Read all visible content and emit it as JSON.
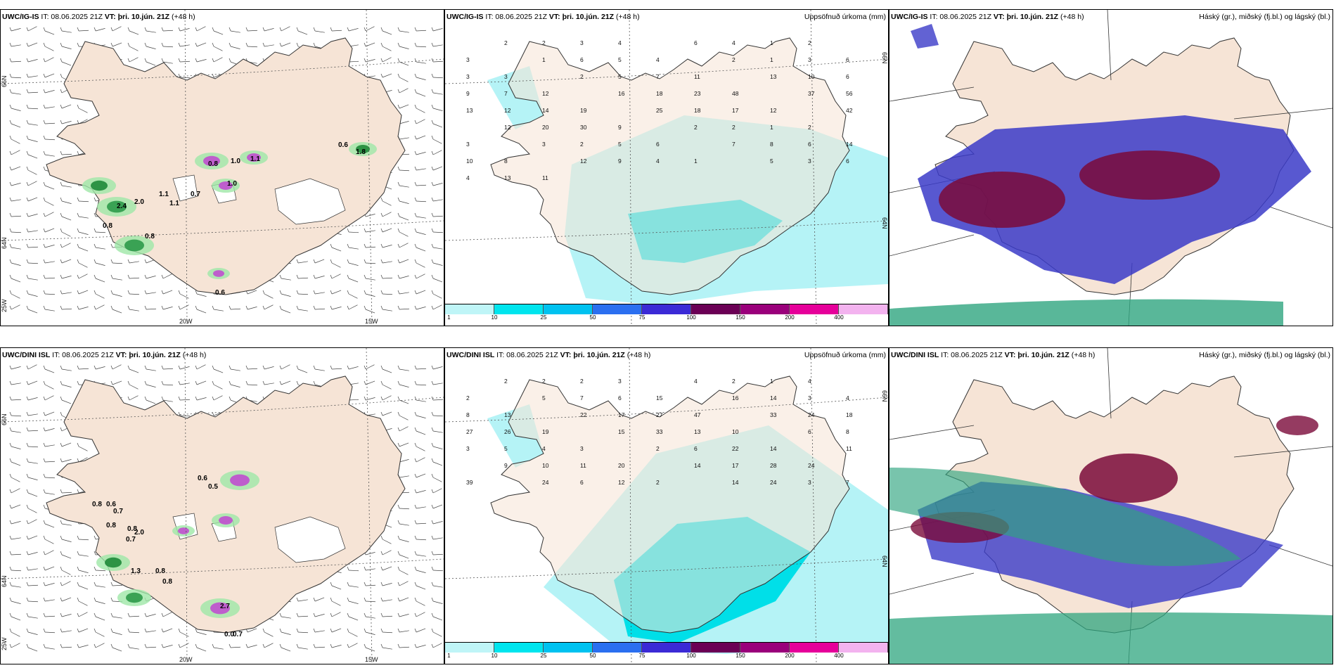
{
  "rows": [
    {
      "wind": {
        "header_bold": "UWC/IG-IS",
        "header_it": " IT: 08.06.2025 21Z ",
        "header_vt_bold": "VT: þri. 10.jún. 21Z",
        "header_tail": " (+48 h)",
        "numbers": [
          "0.6",
          "1.8",
          "0.8",
          "1.1",
          "1.0",
          "2.0",
          "1.1",
          "0.8",
          "0.6",
          "0.8",
          "2.4",
          "1.1",
          "1.0",
          "0.7"
        ]
      },
      "precip": {
        "header_bold": "UWC/IG-IS",
        "header_it": " IT: 08.06.2025 21Z ",
        "header_vt_bold": "VT: þri. 10.jún. 21Z",
        "header_tail": " (+48 h)",
        "title": "Uppsöfnuð úrkoma (mm)",
        "values": [
          "2",
          "2",
          "3",
          "4",
          "6",
          "4",
          "1",
          "2",
          "3",
          "1",
          "6",
          "5",
          "4",
          "2",
          "1",
          "3",
          "6",
          "3",
          "3",
          "2",
          "5",
          "7",
          "11",
          "13",
          "10",
          "6",
          "9",
          "7",
          "12",
          "16",
          "18",
          "23",
          "48",
          "37",
          "56",
          "13",
          "12",
          "14",
          "19",
          "25",
          "18",
          "17",
          "12",
          "42",
          "12",
          "20",
          "30",
          "9",
          "2",
          "2",
          "1",
          "2",
          "3",
          "3",
          "2",
          "5",
          "6",
          "7",
          "8",
          "6",
          "14",
          "10",
          "8",
          "12",
          "9",
          "4",
          "1",
          "5",
          "3",
          "6",
          "4",
          "13",
          "11"
        ]
      },
      "cloud": {
        "header_bold": "UWC/IG-IS",
        "header_it": " IT: 08.06.2025 21Z ",
        "header_vt_bold": "VT: þri. 10.jún. 21Z",
        "header_tail": " (+48 h)",
        "title": "Háský (gr.), miðský (fj.bl.) og lágský (bl.)"
      }
    },
    {
      "wind": {
        "header_bold": "UWC/DINI ISL",
        "header_it": " IT: 08.06.2025 21Z ",
        "header_vt_bold": "VT: þri. 10.jún. 21Z",
        "header_tail": " (+48 h)",
        "numbers": [
          "0.6",
          "0.5",
          "0.8",
          "0.6",
          "0.7",
          "0.8",
          "0.8",
          "2.0",
          "0.7",
          "1.3",
          "0.8",
          "0.8",
          "2.7",
          "0.0",
          "0.7"
        ]
      },
      "precip": {
        "header_bold": "UWC/DINI ISL",
        "header_it": " IT: 08.06.2025 21Z ",
        "header_vt_bold": "VT: þri. 10.jún. 21Z",
        "header_tail": " (+48 h)",
        "title": "Uppsöfnuð úrkoma (mm)",
        "values": [
          "2",
          "2",
          "2",
          "3",
          "4",
          "2",
          "1",
          "4",
          "2",
          "5",
          "7",
          "6",
          "15",
          "16",
          "14",
          "3",
          "4",
          "8",
          "13",
          "22",
          "17",
          "27",
          "47",
          "33",
          "24",
          "18",
          "27",
          "26",
          "19",
          "15",
          "33",
          "13",
          "10",
          "6",
          "8",
          "3",
          "5",
          "4",
          "3",
          "2",
          "6",
          "22",
          "14",
          "11",
          "9",
          "10",
          "11",
          "20",
          "14",
          "17",
          "28",
          "24",
          "39",
          "24",
          "6",
          "12",
          "2",
          "14",
          "24",
          "3",
          "7"
        ]
      },
      "cloud": {
        "header_bold": "UWC/DINI ISL",
        "header_it": " IT: 08.06.2025 21Z ",
        "header_vt_bold": "VT: þri. 10.jún. 21Z",
        "header_tail": " (+48 h)",
        "title": "Háský (gr.), miðský (fj.bl.) og lágský (bl.)"
      }
    }
  ],
  "axes": {
    "lat66": "66N",
    "lat64": "64N",
    "lon25": "25W",
    "lon20": "20W",
    "lon15": "15W"
  },
  "colorbar": {
    "ticks": [
      "1",
      "10",
      "25",
      "50",
      "75",
      "100",
      "150",
      "200",
      "400"
    ],
    "colors": [
      "#bff5f7",
      "#00e5ee",
      "#00c2f0",
      "#2b6ff0",
      "#3b2ad6",
      "#6b0055",
      "#9a007b",
      "#e6009a",
      "#f3b3ef"
    ]
  },
  "colors": {
    "land": "#f6e4d6",
    "precip_light": "#b5f3f6",
    "precip_mid": "#00dfe8",
    "high_cloud": "#2fa57f",
    "mid_cloud": "#3b3bc8",
    "low_cloud": "#7a0a3a"
  }
}
